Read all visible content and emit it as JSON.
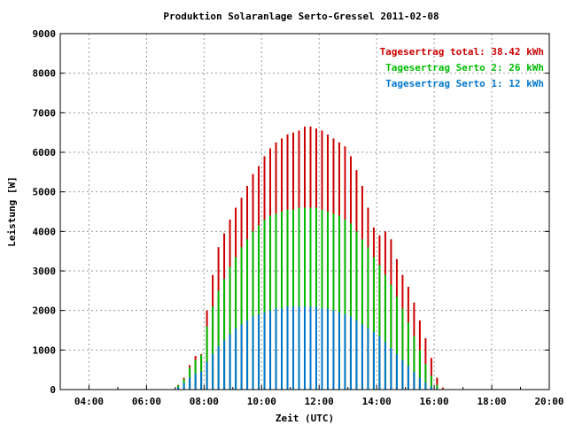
{
  "chart_data": {
    "type": "bar",
    "title": "Produktion Solaranlage Serto-Gressel 2011-02-08",
    "xlabel": "Zeit (UTC)",
    "ylabel": "Leistung [W]",
    "xlim": [
      3.0,
      20.0
    ],
    "ylim": [
      0,
      9000
    ],
    "x_ticks": [
      "04:00",
      "06:00",
      "08:00",
      "10:00",
      "12:00",
      "14:00",
      "16:00",
      "18:00",
      "20:00"
    ],
    "y_ticks": [
      "0",
      "1000",
      "2000",
      "3000",
      "4000",
      "5000",
      "6000",
      "7000",
      "8000",
      "9000"
    ],
    "grid": true,
    "legend_position": "top-right",
    "series": [
      {
        "name": "Tagesertrag total: 38.42 kWh",
        "color": "#cc0000",
        "points": [
          [
            6.9,
            10
          ],
          [
            7.1,
            120
          ],
          [
            7.3,
            300
          ],
          [
            7.5,
            620
          ],
          [
            7.7,
            850
          ],
          [
            7.9,
            900
          ],
          [
            8.1,
            2000
          ],
          [
            8.3,
            2900
          ],
          [
            8.5,
            3600
          ],
          [
            8.7,
            3950
          ],
          [
            8.9,
            4300
          ],
          [
            9.1,
            4600
          ],
          [
            9.3,
            4850
          ],
          [
            9.5,
            5150
          ],
          [
            9.7,
            5450
          ],
          [
            9.9,
            5650
          ],
          [
            10.1,
            5900
          ],
          [
            10.3,
            6100
          ],
          [
            10.5,
            6250
          ],
          [
            10.7,
            6350
          ],
          [
            10.9,
            6450
          ],
          [
            11.1,
            6500
          ],
          [
            11.3,
            6550
          ],
          [
            11.5,
            6650
          ],
          [
            11.7,
            6650
          ],
          [
            11.9,
            6600
          ],
          [
            12.1,
            6550
          ],
          [
            12.3,
            6450
          ],
          [
            12.5,
            6350
          ],
          [
            12.7,
            6250
          ],
          [
            12.9,
            6150
          ],
          [
            13.1,
            5900
          ],
          [
            13.3,
            5550
          ],
          [
            13.5,
            5150
          ],
          [
            13.7,
            4600
          ],
          [
            13.9,
            4100
          ],
          [
            14.1,
            3900
          ],
          [
            14.3,
            4000
          ],
          [
            14.5,
            3800
          ],
          [
            14.7,
            3300
          ],
          [
            14.9,
            2900
          ],
          [
            15.1,
            2600
          ],
          [
            15.3,
            2200
          ],
          [
            15.5,
            1750
          ],
          [
            15.7,
            1300
          ],
          [
            15.9,
            800
          ],
          [
            16.1,
            300
          ],
          [
            16.3,
            50
          ]
        ]
      },
      {
        "name": "Tagesertrag Serto 2: 26 kWh",
        "color": "#00bb00",
        "points": [
          [
            6.9,
            10
          ],
          [
            7.1,
            110
          ],
          [
            7.3,
            270
          ],
          [
            7.5,
            560
          ],
          [
            7.7,
            750
          ],
          [
            7.9,
            880
          ],
          [
            8.1,
            1600
          ],
          [
            8.3,
            2100
          ],
          [
            8.5,
            2500
          ],
          [
            8.7,
            2800
          ],
          [
            8.9,
            3100
          ],
          [
            9.1,
            3350
          ],
          [
            9.3,
            3600
          ],
          [
            9.5,
            3800
          ],
          [
            9.7,
            4000
          ],
          [
            9.9,
            4150
          ],
          [
            10.1,
            4300
          ],
          [
            10.3,
            4400
          ],
          [
            10.5,
            4450
          ],
          [
            10.7,
            4500
          ],
          [
            10.9,
            4550
          ],
          [
            11.1,
            4550
          ],
          [
            11.3,
            4600
          ],
          [
            11.5,
            4600
          ],
          [
            11.7,
            4600
          ],
          [
            11.9,
            4600
          ],
          [
            12.1,
            4550
          ],
          [
            12.3,
            4500
          ],
          [
            12.5,
            4450
          ],
          [
            12.7,
            4400
          ],
          [
            12.9,
            4300
          ],
          [
            13.1,
            4200
          ],
          [
            13.3,
            4000
          ],
          [
            13.5,
            3800
          ],
          [
            13.7,
            3600
          ],
          [
            13.9,
            3350
          ],
          [
            14.1,
            3150
          ],
          [
            14.3,
            2900
          ],
          [
            14.5,
            2650
          ],
          [
            14.7,
            2350
          ],
          [
            14.9,
            2050
          ],
          [
            15.1,
            1700
          ],
          [
            15.3,
            1350
          ],
          [
            15.5,
            1000
          ],
          [
            15.7,
            650
          ],
          [
            15.9,
            350
          ],
          [
            16.1,
            120
          ],
          [
            16.3,
            20
          ]
        ]
      },
      {
        "name": "Tagesertrag Serto 1: 12 kWh",
        "color": "#0077cc",
        "points": [
          [
            6.9,
            5
          ],
          [
            7.1,
            60
          ],
          [
            7.3,
            160
          ],
          [
            7.5,
            300
          ],
          [
            7.7,
            400
          ],
          [
            7.9,
            460
          ],
          [
            8.1,
            700
          ],
          [
            8.3,
            900
          ],
          [
            8.5,
            1100
          ],
          [
            8.7,
            1250
          ],
          [
            8.9,
            1400
          ],
          [
            9.1,
            1550
          ],
          [
            9.3,
            1650
          ],
          [
            9.5,
            1750
          ],
          [
            9.7,
            1850
          ],
          [
            9.9,
            1900
          ],
          [
            10.1,
            1950
          ],
          [
            10.3,
            2000
          ],
          [
            10.5,
            2050
          ],
          [
            10.7,
            2050
          ],
          [
            10.9,
            2100
          ],
          [
            11.1,
            2100
          ],
          [
            11.3,
            2100
          ],
          [
            11.5,
            2100
          ],
          [
            11.7,
            2100
          ],
          [
            11.9,
            2100
          ],
          [
            12.1,
            2050
          ],
          [
            12.3,
            2050
          ],
          [
            12.5,
            2000
          ],
          [
            12.7,
            1950
          ],
          [
            12.9,
            1900
          ],
          [
            13.1,
            1850
          ],
          [
            13.3,
            1750
          ],
          [
            13.5,
            1650
          ],
          [
            13.7,
            1550
          ],
          [
            13.9,
            1450
          ],
          [
            14.1,
            1350
          ],
          [
            14.3,
            1200
          ],
          [
            14.5,
            1050
          ],
          [
            14.7,
            900
          ],
          [
            14.9,
            750
          ],
          [
            15.1,
            600
          ],
          [
            15.3,
            450
          ],
          [
            15.5,
            300
          ],
          [
            15.7,
            180
          ],
          [
            15.9,
            80
          ],
          [
            16.1,
            25
          ],
          [
            16.3,
            5
          ]
        ]
      }
    ]
  }
}
